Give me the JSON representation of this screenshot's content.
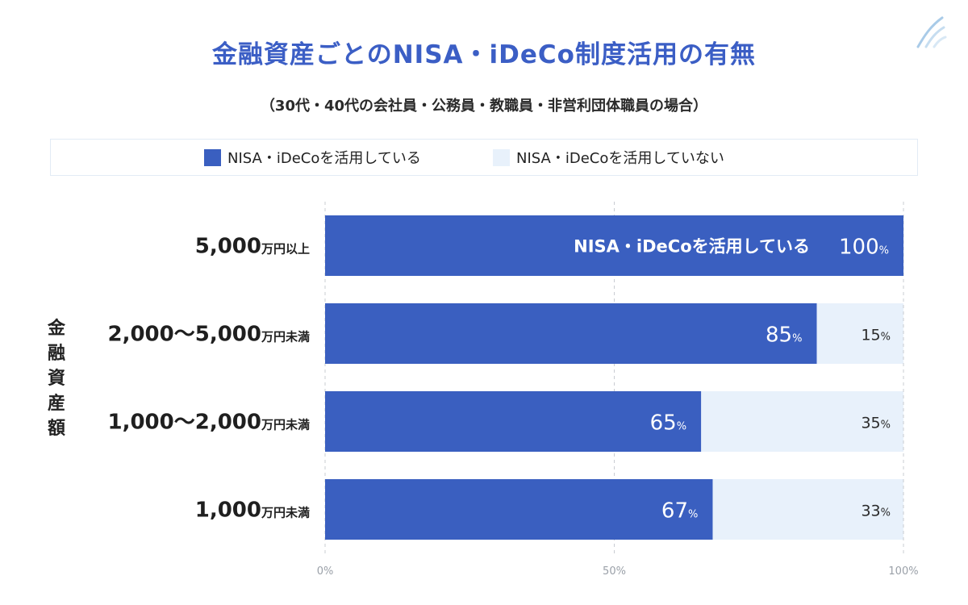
{
  "title": "金融資産ごとのNISA・iDeCo制度活用の有無",
  "subtitle": "（30代・40代の会社員・公務員・教職員・非営利団体職員の場合）",
  "legend": [
    {
      "label": "NISA・iDeCoを活用している",
      "color": "#3a5fc0"
    },
    {
      "label": "NISA・iDeCoを活用していない",
      "color": "#e8f1fb"
    }
  ],
  "y_axis_title": [
    "金",
    "融",
    "資",
    "産",
    "額"
  ],
  "chart_data": {
    "type": "bar",
    "orientation": "horizontal",
    "stacked": true,
    "ylabel": "金融資産額",
    "categories": [
      {
        "main": "5,000",
        "unit": "万円以上"
      },
      {
        "main": "2,000〜5,000",
        "unit": "万円未満"
      },
      {
        "main": "1,000〜2,000",
        "unit": "万円未満"
      },
      {
        "main": "1,000",
        "unit": "万円未満"
      }
    ],
    "series": [
      {
        "name": "NISA・iDeCoを活用している",
        "values": [
          100,
          85,
          65,
          67
        ],
        "color": "#3a5fc0"
      },
      {
        "name": "NISA・iDeCoを活用していない",
        "values": [
          0,
          15,
          35,
          33
        ],
        "color": "#e8f1fb"
      }
    ],
    "inline_label": "NISA・iDeCoを活用している",
    "percent_unit": "%",
    "xlim": [
      0,
      100
    ],
    "xticks": [
      "0%",
      "50%",
      "100%"
    ],
    "grid": "dashed-vertical"
  }
}
